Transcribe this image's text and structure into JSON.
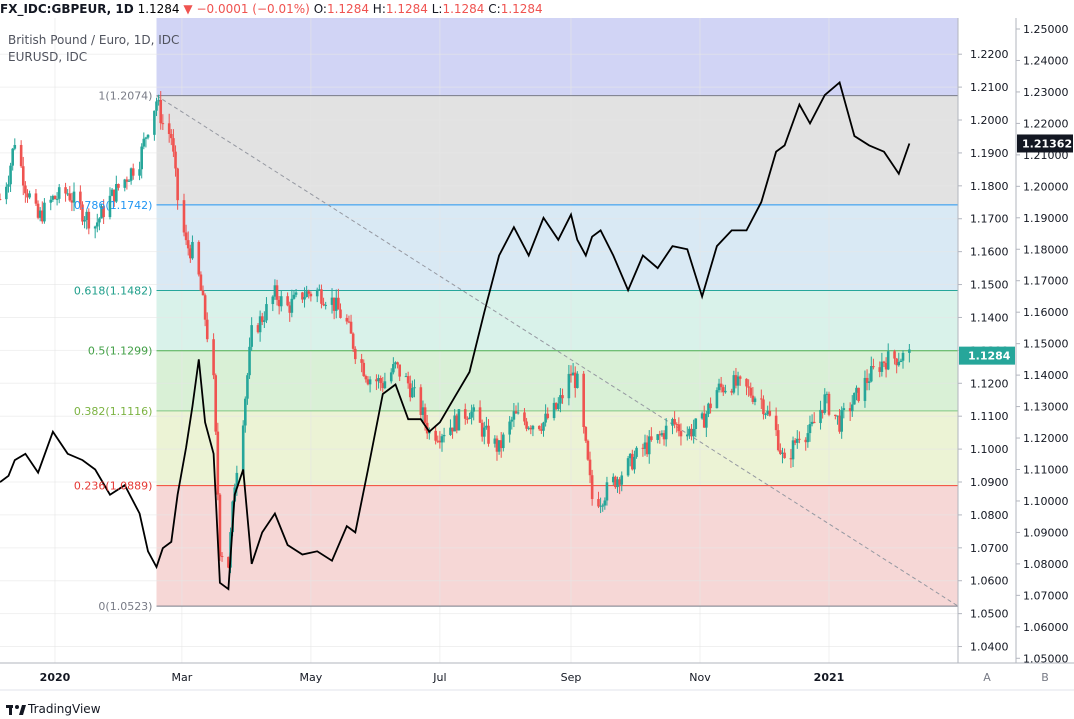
{
  "header": {
    "symbol": "FX_IDC:GBPEUR, 1D",
    "last": "1.1284",
    "change": "−0.0001 (−0.01%)",
    "o_label": "O:",
    "o": "1.1284",
    "h_label": "H:",
    "h": "1.1284",
    "l_label": "L:",
    "l": "1.1284",
    "c_label": "C:",
    "c": "1.1284",
    "down_icon": "triangle-down-icon"
  },
  "legend": {
    "main": "British Pound / Euro, 1D, IDC",
    "overlay": "EURUSD, IDC"
  },
  "footer": {
    "brand": "TradingView",
    "logo": "tradingview-logo-icon"
  },
  "colors": {
    "up": "#26a69a",
    "down": "#ef5350",
    "overlay": "#000000",
    "zone_top": "#d1d4f5",
    "zone_1": "#e2e2e2",
    "zone_786": "#d9e9f4",
    "zone_618": "#d9f2ea",
    "zone_5": "#d9f0d6",
    "zone_382": "#ecf3d5",
    "zone_236": "#f6d7d6"
  },
  "chart_data": {
    "type": "candlestick-with-overlay-line",
    "x_axis": {
      "labels": [
        "2020",
        "Mar",
        "May",
        "Jul",
        "Sep",
        "Nov",
        "2021"
      ],
      "label_dates": [
        "2020-01-01",
        "2020-03-01",
        "2020-05-01",
        "2020-07-01",
        "2020-09-01",
        "2020-11-01",
        "2021-01-01"
      ],
      "range": [
        "2019-12-06",
        "2021-03-03"
      ]
    },
    "y_axis_a": {
      "name": "A",
      "ticks": [
        "1.2200",
        "1.2100",
        "1.2000",
        "1.1900",
        "1.1800",
        "1.1700",
        "1.1600",
        "1.1500",
        "1.1400",
        "1.1300",
        "1.1200",
        "1.1100",
        "1.1000",
        "1.0900",
        "1.0800",
        "1.0700",
        "1.0600",
        "1.0500",
        "1.0400"
      ],
      "range": [
        1.035,
        1.231
      ],
      "last_badge": "1.1284"
    },
    "y_axis_b": {
      "name": "B",
      "ticks": [
        "1.25000",
        "1.24000",
        "1.23000",
        "1.22000",
        "1.21000",
        "1.20000",
        "1.19000",
        "1.18000",
        "1.17000",
        "1.16000",
        "1.15000",
        "1.14000",
        "1.13000",
        "1.12000",
        "1.11000",
        "1.10000",
        "1.09000",
        "1.08000",
        "1.07000",
        "1.06000",
        "1.05000"
      ],
      "range": [
        1.0485,
        1.2535
      ],
      "last_badge": "1.21362"
    },
    "fib_levels": [
      {
        "ratio": 1,
        "price": 1.2074,
        "label": "1(1.2074)"
      },
      {
        "ratio": 0.786,
        "price": 1.1742,
        "label": "0.786(1.1742)"
      },
      {
        "ratio": 0.618,
        "price": 1.1482,
        "label": "0.618(1.1482)"
      },
      {
        "ratio": 0.5,
        "price": 1.1299,
        "label": "0.5(1.1299)"
      },
      {
        "ratio": 0.382,
        "price": 1.1116,
        "label": "0.382(1.1116)"
      },
      {
        "ratio": 0.236,
        "price": 1.0889,
        "label": "0.236(1.0889)"
      },
      {
        "ratio": 0,
        "price": 1.0523,
        "label": "0(1.0523)"
      }
    ],
    "fib_start_date": "2020-02-18",
    "fib_end_date": "2021-03-03",
    "trend_line": {
      "from": [
        "2020-02-18",
        1.2074
      ],
      "to": [
        "2021-03-03",
        1.0523
      ]
    },
    "gbpeur_path": [
      [
        "2019-12-06",
        1.176
      ],
      [
        "2019-12-10",
        1.183
      ],
      [
        "2019-12-13",
        1.194
      ],
      [
        "2019-12-18",
        1.18
      ],
      [
        "2019-12-24",
        1.17
      ],
      [
        "2019-12-31",
        1.176
      ],
      [
        "2020-01-07",
        1.178
      ],
      [
        "2020-01-14",
        1.172
      ],
      [
        "2020-01-20",
        1.168
      ],
      [
        "2020-01-27",
        1.176
      ],
      [
        "2020-02-03",
        1.182
      ],
      [
        "2020-02-10",
        1.188
      ],
      [
        "2020-02-14",
        1.198
      ],
      [
        "2020-02-18",
        1.206
      ],
      [
        "2020-02-21",
        1.199
      ],
      [
        "2020-02-25",
        1.195
      ],
      [
        "2020-02-28",
        1.176
      ],
      [
        "2020-03-03",
        1.162
      ],
      [
        "2020-03-06",
        1.16
      ],
      [
        "2020-03-09",
        1.152
      ],
      [
        "2020-03-12",
        1.14
      ],
      [
        "2020-03-16",
        1.12
      ],
      [
        "2020-03-19",
        1.07
      ],
      [
        "2020-03-23",
        1.065
      ],
      [
        "2020-03-26",
        1.09
      ],
      [
        "2020-03-30",
        1.11
      ],
      [
        "2020-04-03",
        1.135
      ],
      [
        "2020-04-08",
        1.14
      ],
      [
        "2020-04-14",
        1.147
      ],
      [
        "2020-04-20",
        1.143
      ],
      [
        "2020-04-27",
        1.147
      ],
      [
        "2020-05-04",
        1.148
      ],
      [
        "2020-05-11",
        1.145
      ],
      [
        "2020-05-18",
        1.138
      ],
      [
        "2020-05-22",
        1.13
      ],
      [
        "2020-05-28",
        1.122
      ],
      [
        "2020-06-04",
        1.12
      ],
      [
        "2020-06-10",
        1.125
      ],
      [
        "2020-06-16",
        1.12
      ],
      [
        "2020-06-22",
        1.112
      ],
      [
        "2020-06-26",
        1.105
      ],
      [
        "2020-07-01",
        1.105
      ],
      [
        "2020-07-08",
        1.108
      ],
      [
        "2020-07-15",
        1.112
      ],
      [
        "2020-07-22",
        1.105
      ],
      [
        "2020-07-29",
        1.1
      ],
      [
        "2020-08-05",
        1.11
      ],
      [
        "2020-08-12",
        1.108
      ],
      [
        "2020-08-19",
        1.108
      ],
      [
        "2020-08-26",
        1.113
      ],
      [
        "2020-09-01",
        1.123
      ],
      [
        "2020-09-04",
        1.12
      ],
      [
        "2020-09-08",
        1.1
      ],
      [
        "2020-09-11",
        1.085
      ],
      [
        "2020-09-15",
        1.085
      ],
      [
        "2020-09-21",
        1.09
      ],
      [
        "2020-09-28",
        1.095
      ],
      [
        "2020-10-05",
        1.1
      ],
      [
        "2020-10-12",
        1.103
      ],
      [
        "2020-10-19",
        1.108
      ],
      [
        "2020-10-26",
        1.105
      ],
      [
        "2020-11-02",
        1.108
      ],
      [
        "2020-11-09",
        1.118
      ],
      [
        "2020-11-16",
        1.12
      ],
      [
        "2020-11-23",
        1.118
      ],
      [
        "2020-11-30",
        1.115
      ],
      [
        "2020-12-07",
        1.105
      ],
      [
        "2020-12-11",
        1.095
      ],
      [
        "2020-12-18",
        1.105
      ],
      [
        "2020-12-23",
        1.105
      ],
      [
        "2020-12-30",
        1.115
      ],
      [
        "2021-01-06",
        1.108
      ],
      [
        "2021-01-13",
        1.115
      ],
      [
        "2021-01-20",
        1.122
      ],
      [
        "2021-01-27",
        1.127
      ],
      [
        "2021-02-03",
        1.128
      ],
      [
        "2021-02-08",
        1.1284
      ]
    ],
    "eurusd_path": [
      [
        "2019-12-06",
        1.106
      ],
      [
        "2019-12-10",
        1.108
      ],
      [
        "2019-12-13",
        1.113
      ],
      [
        "2019-12-18",
        1.115
      ],
      [
        "2019-12-24",
        1.109
      ],
      [
        "2019-12-31",
        1.122
      ],
      [
        "2020-01-07",
        1.115
      ],
      [
        "2020-01-14",
        1.113
      ],
      [
        "2020-01-20",
        1.11
      ],
      [
        "2020-01-27",
        1.102
      ],
      [
        "2020-02-03",
        1.105
      ],
      [
        "2020-02-10",
        1.096
      ],
      [
        "2020-02-14",
        1.084
      ],
      [
        "2020-02-18",
        1.079
      ],
      [
        "2020-02-21",
        1.085
      ],
      [
        "2020-02-25",
        1.087
      ],
      [
        "2020-02-28",
        1.102
      ],
      [
        "2020-03-03",
        1.117
      ],
      [
        "2020-03-06",
        1.13
      ],
      [
        "2020-03-09",
        1.145
      ],
      [
        "2020-03-12",
        1.125
      ],
      [
        "2020-03-16",
        1.115
      ],
      [
        "2020-03-19",
        1.074
      ],
      [
        "2020-03-23",
        1.072
      ],
      [
        "2020-03-26",
        1.102
      ],
      [
        "2020-03-30",
        1.11
      ],
      [
        "2020-04-03",
        1.08
      ],
      [
        "2020-04-08",
        1.09
      ],
      [
        "2020-04-14",
        1.096
      ],
      [
        "2020-04-20",
        1.086
      ],
      [
        "2020-04-27",
        1.083
      ],
      [
        "2020-05-04",
        1.084
      ],
      [
        "2020-05-11",
        1.081
      ],
      [
        "2020-05-18",
        1.092
      ],
      [
        "2020-05-22",
        1.09
      ],
      [
        "2020-05-28",
        1.11
      ],
      [
        "2020-06-04",
        1.134
      ],
      [
        "2020-06-10",
        1.137
      ],
      [
        "2020-06-16",
        1.126
      ],
      [
        "2020-06-22",
        1.126
      ],
      [
        "2020-06-26",
        1.122
      ],
      [
        "2020-07-01",
        1.125
      ],
      [
        "2020-07-08",
        1.133
      ],
      [
        "2020-07-15",
        1.141
      ],
      [
        "2020-07-22",
        1.16
      ],
      [
        "2020-07-29",
        1.178
      ],
      [
        "2020-08-05",
        1.187
      ],
      [
        "2020-08-12",
        1.178
      ],
      [
        "2020-08-19",
        1.19
      ],
      [
        "2020-08-26",
        1.183
      ],
      [
        "2020-09-01",
        1.191
      ],
      [
        "2020-09-04",
        1.183
      ],
      [
        "2020-09-08",
        1.178
      ],
      [
        "2020-09-11",
        1.184
      ],
      [
        "2020-09-15",
        1.186
      ],
      [
        "2020-09-21",
        1.178
      ],
      [
        "2020-09-28",
        1.167
      ],
      [
        "2020-10-05",
        1.178
      ],
      [
        "2020-10-12",
        1.174
      ],
      [
        "2020-10-19",
        1.181
      ],
      [
        "2020-10-26",
        1.18
      ],
      [
        "2020-11-02",
        1.165
      ],
      [
        "2020-11-09",
        1.181
      ],
      [
        "2020-11-16",
        1.186
      ],
      [
        "2020-11-23",
        1.186
      ],
      [
        "2020-11-30",
        1.195
      ],
      [
        "2020-12-07",
        1.211
      ],
      [
        "2020-12-11",
        1.213
      ],
      [
        "2020-12-18",
        1.226
      ],
      [
        "2020-12-23",
        1.22
      ],
      [
        "2020-12-30",
        1.229
      ],
      [
        "2021-01-06",
        1.233
      ],
      [
        "2021-01-13",
        1.216
      ],
      [
        "2021-01-20",
        1.213
      ],
      [
        "2021-01-27",
        1.211
      ],
      [
        "2021-02-03",
        1.204
      ],
      [
        "2021-02-08",
        1.2136
      ]
    ]
  }
}
